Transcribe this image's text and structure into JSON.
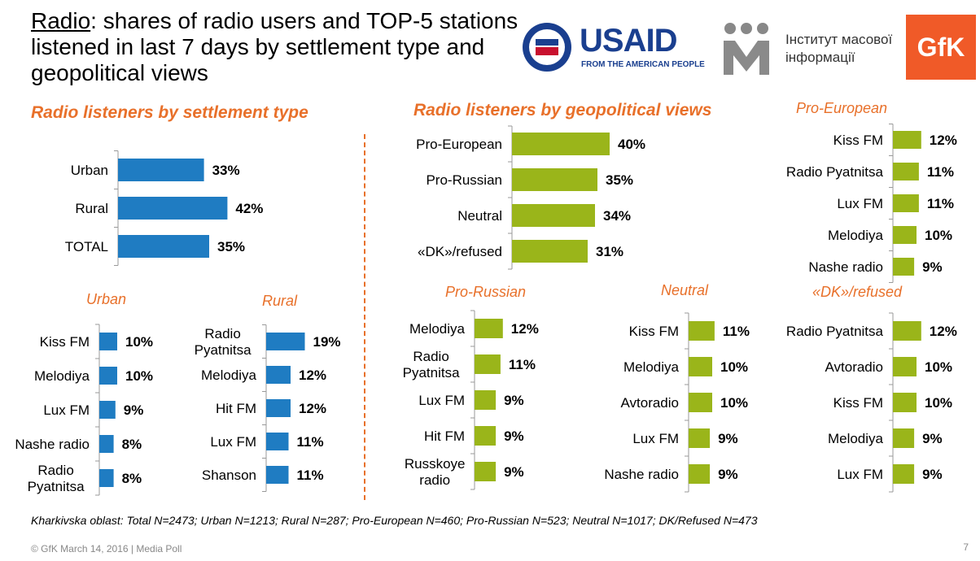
{
  "title": {
    "underlined": "Radio",
    "rest": ": shares of radio users and TOP-5 stations listened in last 7 days by settlement type and geopolitical views"
  },
  "logos": {
    "usaid": "USAID",
    "usaid_sub": "FROM THE AMERICAN PEOPLE",
    "imi_line1": "Інститут масової",
    "imi_line2": "інформації",
    "gfk": "GfK"
  },
  "colors": {
    "blue": "#1f7cc2",
    "green": "#9ab51a",
    "accent": "#e8702a"
  },
  "chart_data": [
    {
      "type": "bar",
      "id": "settlement",
      "title": "Radio listeners by settlement type",
      "categories": [
        "Urban",
        "Rural",
        "TOTAL"
      ],
      "values": [
        33,
        42,
        35
      ],
      "labels": [
        "33%",
        "42%",
        "35%"
      ]
    },
    {
      "type": "bar",
      "id": "urban",
      "title": "Urban",
      "categories": [
        "Kiss FM",
        "Melodiya",
        "Lux FM",
        "Nashe radio",
        "Radio Pyatnitsa"
      ],
      "values": [
        10,
        10,
        9,
        8,
        8
      ],
      "labels": [
        "10%",
        "10%",
        "9%",
        "8%",
        "8%"
      ]
    },
    {
      "type": "bar",
      "id": "rural",
      "title": "Rural",
      "categories": [
        "Radio Pyatnitsa",
        "Melodiya",
        "Hit FM",
        "Lux FM",
        "Shanson"
      ],
      "values": [
        19,
        12,
        12,
        11,
        11
      ],
      "labels": [
        "19%",
        "12%",
        "12%",
        "11%",
        "11%"
      ]
    },
    {
      "type": "bar",
      "id": "geo",
      "title": "Radio listeners by geopolitical views",
      "categories": [
        "Pro-European",
        "Pro-Russian",
        "Neutral",
        "«DK»/refused"
      ],
      "values": [
        40,
        35,
        34,
        31
      ],
      "labels": [
        "40%",
        "35%",
        "34%",
        "31%"
      ]
    },
    {
      "type": "bar",
      "id": "proeu",
      "title": "Pro-European",
      "categories": [
        "Kiss FM",
        "Radio Pyatnitsa",
        "Lux FM",
        "Melodiya",
        "Nashe radio"
      ],
      "values": [
        12,
        11,
        11,
        10,
        9
      ],
      "labels": [
        "12%",
        "11%",
        "11%",
        "10%",
        "9%"
      ]
    },
    {
      "type": "bar",
      "id": "proru",
      "title": "Pro-Russian",
      "categories": [
        "Melodiya",
        "Radio Pyatnitsa",
        "Lux FM",
        "Hit FM",
        "Russkoye radio"
      ],
      "values": [
        12,
        11,
        9,
        9,
        9
      ],
      "labels": [
        "12%",
        "11%",
        "9%",
        "9%",
        "9%"
      ]
    },
    {
      "type": "bar",
      "id": "neutral",
      "title": "Neutral",
      "categories": [
        "Kiss FM",
        "Melodiya",
        "Avtoradio",
        "Lux FM",
        "Nashe radio"
      ],
      "values": [
        11,
        10,
        10,
        9,
        9
      ],
      "labels": [
        "11%",
        "10%",
        "10%",
        "9%",
        "9%"
      ]
    },
    {
      "type": "bar",
      "id": "dk",
      "title": "«DK»/refused",
      "categories": [
        "Radio Pyatnitsa",
        "Avtoradio",
        "Kiss FM",
        "Melodiya",
        "Lux FM"
      ],
      "values": [
        12,
        10,
        10,
        9,
        9
      ],
      "labels": [
        "12%",
        "10%",
        "10%",
        "9%",
        "9%"
      ]
    }
  ],
  "footnote": "Kharkivska oblast: Total N=2473; Urban N=1213; Rural N=287; Pro-European N=460; Pro-Russian N=523; Neutral N=1017; DK/Refused N=473",
  "footer": "© GfK March 14, 2016 | Media Poll",
  "page_number": "7"
}
